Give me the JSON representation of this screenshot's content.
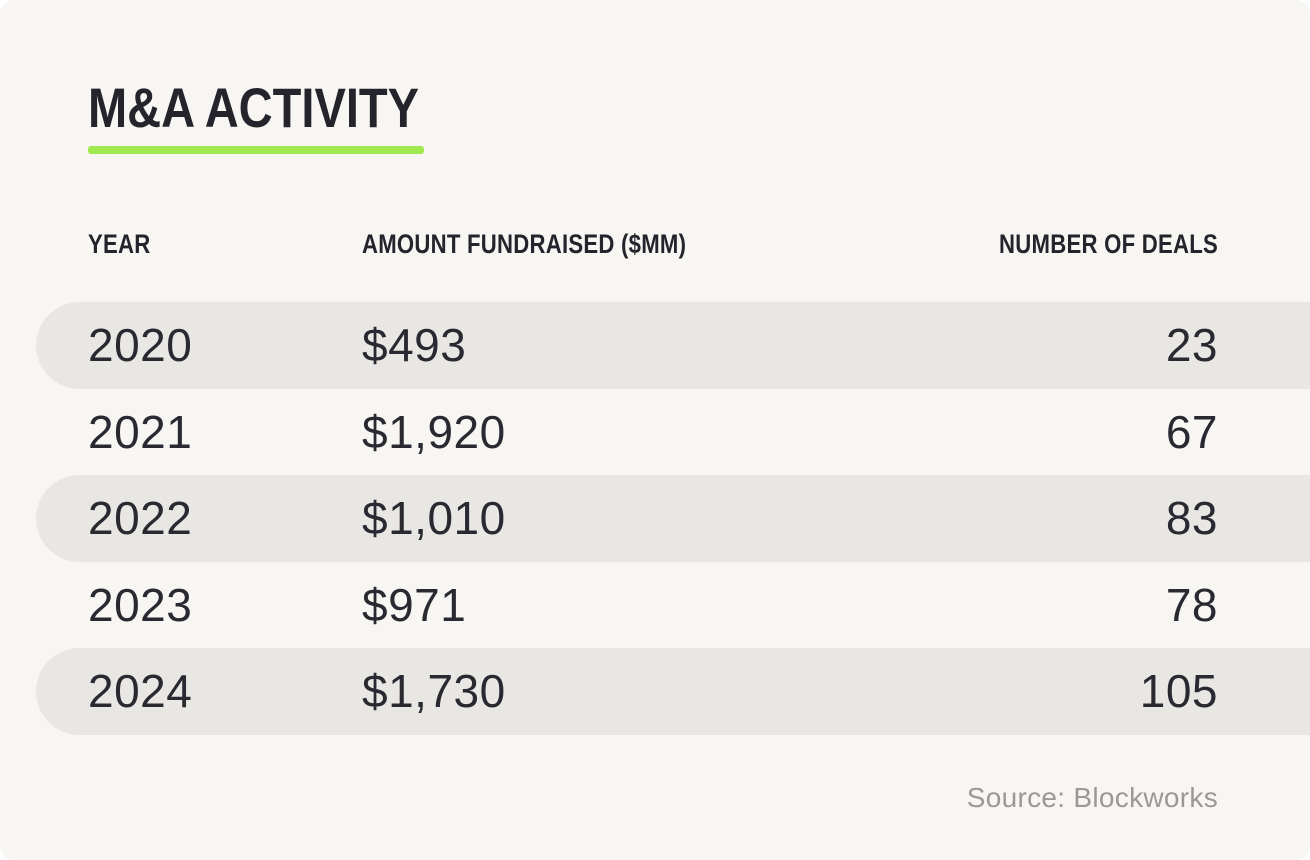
{
  "chart_data": {
    "type": "table",
    "title": "M&A ACTIVITY",
    "columns": [
      "YEAR",
      "AMOUNT FUNDRAISED ($MM)",
      "NUMBER OF DEALS"
    ],
    "rows": [
      {
        "year": "2020",
        "amount": "$493",
        "deals": "23"
      },
      {
        "year": "2021",
        "amount": "$1,920",
        "deals": "67"
      },
      {
        "year": "2022",
        "amount": "$1,010",
        "deals": "83"
      },
      {
        "year": "2023",
        "amount": "$971",
        "deals": "78"
      },
      {
        "year": "2024",
        "amount": "$1,730",
        "deals": "105"
      }
    ],
    "numeric": {
      "years": [
        2020,
        2021,
        2022,
        2023,
        2024
      ],
      "amount_fundraised_mm": [
        493,
        1920,
        1010,
        971,
        1730
      ],
      "number_of_deals": [
        23,
        67,
        83,
        78,
        105
      ]
    },
    "source": "Source: Blockworks",
    "layout": {
      "striped_rows": [
        0,
        2,
        4
      ],
      "column_alignment": [
        "left",
        "left",
        "right"
      ],
      "stripe_shape": "rounded-left-pill-bleeds-right"
    }
  },
  "colors": {
    "card_background": "#F8F6F3",
    "row_stripe": "#E9E7E4",
    "text_dark": "#25232B",
    "text_data": "#2A2830",
    "text_muted": "#9B9995",
    "accent_green": "#A0E84F"
  }
}
